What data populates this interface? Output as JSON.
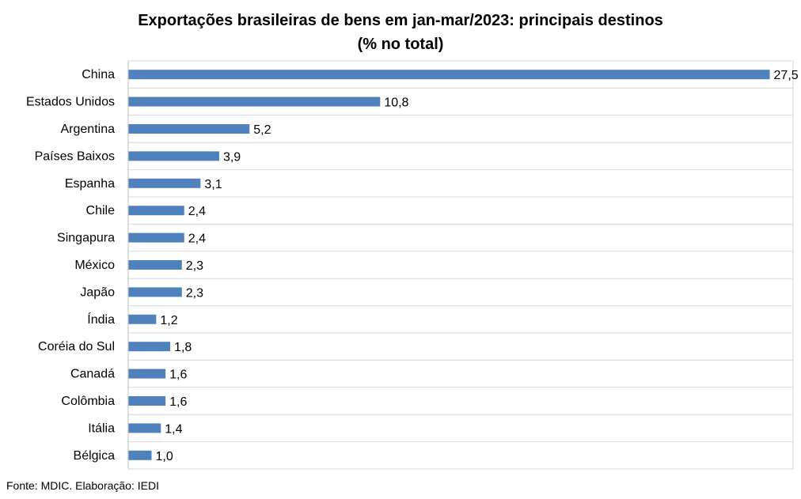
{
  "title": {
    "line1": "Exportações brasileiras de bens em jan-mar/2023: principais destinos",
    "line2": "(% no total)"
  },
  "source": "Fonte: MDIC. Elaboração: IEDI",
  "colors": {
    "bar": "#4F81BD",
    "gridline": "#D9D9D9",
    "axis": "#BFBFBF",
    "text": "#000000"
  },
  "chart_data": {
    "type": "bar",
    "orientation": "horizontal",
    "title": "Exportações brasileiras de bens em jan-mar/2023: principais destinos (% no total)",
    "xlabel": "",
    "ylabel": "",
    "xlim": [
      0,
      28.5
    ],
    "grid": true,
    "legend": "none",
    "data_labels": true,
    "categories": [
      "China",
      "Estados Unidos",
      "Argentina",
      "Países Baixos",
      "Espanha",
      "Chile",
      "Singapura",
      "México",
      "Japão",
      "Índia",
      "Coréia do Sul",
      "Canadá",
      "Colômbia",
      "Itália",
      "Bélgica"
    ],
    "values": [
      27.5,
      10.8,
      5.2,
      3.9,
      3.1,
      2.4,
      2.4,
      2.3,
      2.3,
      1.2,
      1.8,
      1.6,
      1.6,
      1.4,
      1.0
    ],
    "value_labels": [
      "27,5",
      "10,8",
      "5,2",
      "3,9",
      "3,1",
      "2,4",
      "2,4",
      "2,3",
      "2,3",
      "1,2",
      "1,8",
      "1,6",
      "1,6",
      "1,4",
      "1,0"
    ]
  }
}
